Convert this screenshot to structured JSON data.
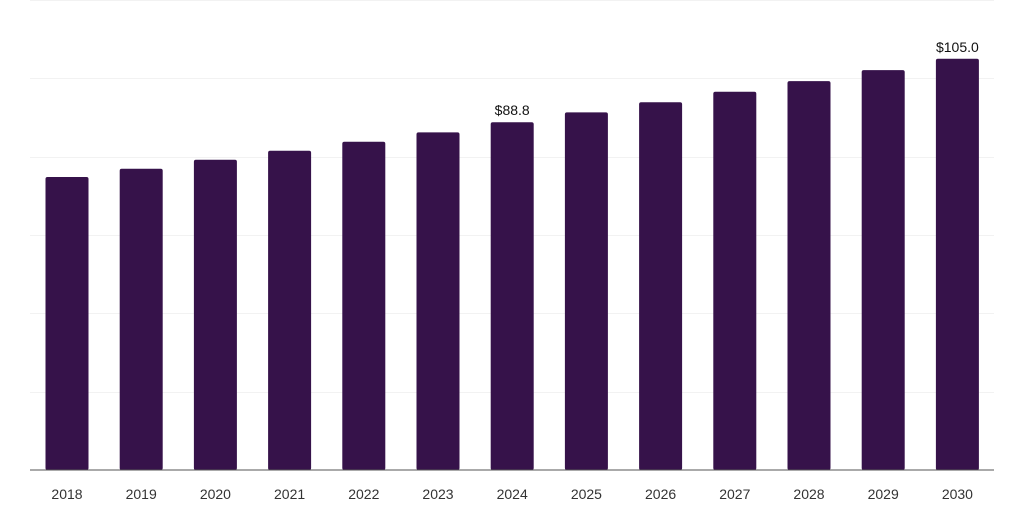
{
  "chart_data": {
    "type": "bar",
    "categories": [
      "2018",
      "2019",
      "2020",
      "2021",
      "2022",
      "2023",
      "2024",
      "2025",
      "2026",
      "2027",
      "2028",
      "2029",
      "2030"
    ],
    "series": [
      {
        "values": [
          74.8,
          76.9,
          79.2,
          81.5,
          83.8,
          86.2,
          88.8,
          91.3,
          93.9,
          96.6,
          99.3,
          102.1,
          105.0
        ],
        "data_labels": [
          "",
          "",
          "",
          "",
          "",
          "",
          "$88.8",
          "",
          "",
          "",
          "",
          "",
          "$105.0"
        ]
      }
    ],
    "title": "",
    "xlabel": "",
    "ylabel": "",
    "ylim": [
      0,
      120
    ],
    "grid": true,
    "legend": "none",
    "colors": {
      "bar": "#36124a",
      "grid": "#f2f2f2",
      "axis": "#555555"
    }
  }
}
